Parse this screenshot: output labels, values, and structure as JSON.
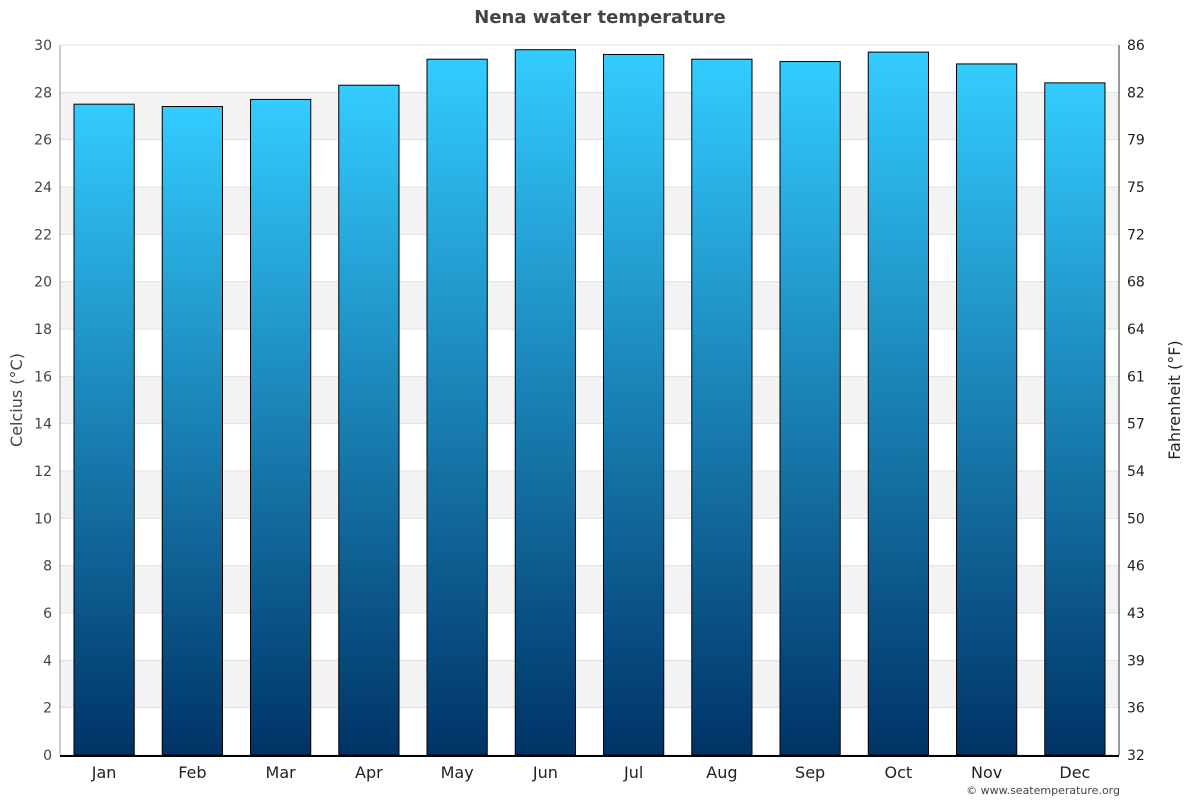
{
  "chart_data": {
    "type": "bar",
    "title": "Nena water temperature",
    "categories": [
      "Jan",
      "Feb",
      "Mar",
      "Apr",
      "May",
      "Jun",
      "Jul",
      "Aug",
      "Sep",
      "Oct",
      "Nov",
      "Dec"
    ],
    "values": [
      27.5,
      27.4,
      27.7,
      28.3,
      29.4,
      29.8,
      29.6,
      29.4,
      29.3,
      29.7,
      29.2,
      28.4
    ],
    "ylabel": "Celcius (°C)",
    "y2label": "Fahrenheit (°F)",
    "ylim": [
      0,
      30
    ],
    "yticks": [
      0,
      2,
      4,
      6,
      8,
      10,
      12,
      14,
      16,
      18,
      20,
      22,
      24,
      26,
      28,
      30
    ],
    "y2ticks": [
      "32",
      "36",
      "39",
      "43",
      "46",
      "50",
      "54",
      "57",
      "61",
      "64",
      "68",
      "72",
      "75",
      "79",
      "82",
      "86"
    ],
    "grid": true,
    "colors": {
      "bar_top": "#33ccff",
      "bar_bottom": "#003366",
      "band": "#f3f3f3"
    }
  },
  "credit": "© www.seatemperature.org"
}
